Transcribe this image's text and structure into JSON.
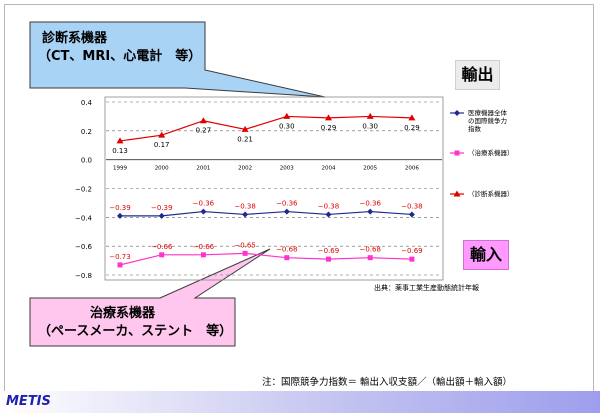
{
  "callouts": {
    "diagnostic": {
      "line1": "診断系機器",
      "line2": "（CT、MRI、心電計　等）"
    },
    "therapeutic": {
      "line1": "治療系機器",
      "line2": "（ペースメーカ、ステント　等）"
    }
  },
  "badges": {
    "export": "輸出",
    "import": "輸入"
  },
  "source": "出典：薬事工業生産動態統計年報",
  "footnote": "注：国際競争力指数＝ 輸出入収支額／（輸出額＋輸入額）",
  "brand": "METIS",
  "colors": {
    "overall": "#1f2a8c",
    "therapeutic": "#ff33cc",
    "diagnostic": "#e00000",
    "callout_blue": "#a9d3f5",
    "callout_pink": "#ffc6ee",
    "import_badge": "#ff99ff"
  },
  "chart_data": {
    "type": "line",
    "x": [
      "1999",
      "2000",
      "2001",
      "2002",
      "2003",
      "2004",
      "2005",
      "2006"
    ],
    "yticks": [
      "0.4",
      "0.2",
      "0.0",
      "−0.2",
      "−0.4",
      "−0.6",
      "−0.8"
    ],
    "ylim": [
      -0.8,
      0.4
    ],
    "grid": "dashed horizontal",
    "legend_position": "right",
    "series": [
      {
        "name": "医療機器全体の国際競争力指数",
        "marker": "diamond",
        "values": [
          -0.39,
          -0.39,
          -0.36,
          -0.38,
          -0.36,
          -0.38,
          -0.36,
          -0.38
        ],
        "labels": [
          "−0.39",
          "−0.39",
          "−0.36",
          "−0.38",
          "−0.36",
          "−0.38",
          "−0.36",
          "−0.38"
        ]
      },
      {
        "name": "（治療系機器）",
        "marker": "square",
        "values": [
          -0.73,
          -0.66,
          -0.66,
          -0.65,
          -0.68,
          -0.69,
          -0.68,
          -0.69
        ],
        "labels": [
          "−0.73",
          "−0.66",
          "−0.66",
          "−0.65",
          "−0.68",
          "−0.69",
          "−0.68",
          "−0.69"
        ]
      },
      {
        "name": "（診断系機器）",
        "marker": "triangle",
        "values": [
          0.13,
          0.17,
          0.27,
          0.21,
          0.3,
          0.29,
          0.3,
          0.29
        ],
        "labels": [
          "0.13",
          "0.17",
          "0.27",
          "0.21",
          "0.30",
          "0.29",
          "0.30",
          "0.29"
        ]
      }
    ]
  }
}
